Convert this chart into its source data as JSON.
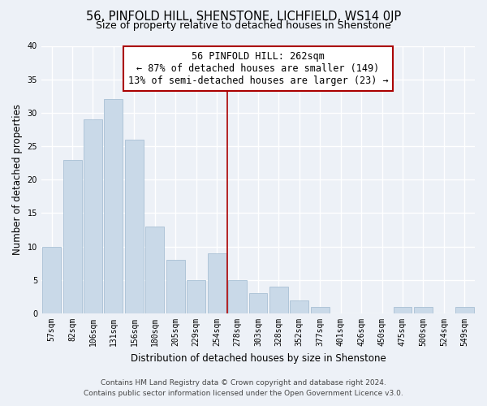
{
  "title": "56, PINFOLD HILL, SHENSTONE, LICHFIELD, WS14 0JP",
  "subtitle": "Size of property relative to detached houses in Shenstone",
  "xlabel": "Distribution of detached houses by size in Shenstone",
  "ylabel": "Number of detached properties",
  "bar_labels": [
    "57sqm",
    "82sqm",
    "106sqm",
    "131sqm",
    "156sqm",
    "180sqm",
    "205sqm",
    "229sqm",
    "254sqm",
    "278sqm",
    "303sqm",
    "328sqm",
    "352sqm",
    "377sqm",
    "401sqm",
    "426sqm",
    "450sqm",
    "475sqm",
    "500sqm",
    "524sqm",
    "549sqm"
  ],
  "bar_values": [
    10,
    23,
    29,
    32,
    26,
    13,
    8,
    5,
    9,
    5,
    3,
    4,
    2,
    1,
    0,
    0,
    0,
    1,
    1,
    0,
    1
  ],
  "bar_color": "#c9d9e8",
  "bar_edge_color": "#a8c0d4",
  "vline_x": 8.5,
  "vline_color": "#aa0000",
  "annotation_title": "56 PINFOLD HILL: 262sqm",
  "annotation_line1": "← 87% of detached houses are smaller (149)",
  "annotation_line2": "13% of semi-detached houses are larger (23) →",
  "annotation_box_facecolor": "#ffffff",
  "annotation_box_edgecolor": "#aa0000",
  "ylim": [
    0,
    40
  ],
  "yticks": [
    0,
    5,
    10,
    15,
    20,
    25,
    30,
    35,
    40
  ],
  "footnote1": "Contains HM Land Registry data © Crown copyright and database right 2024.",
  "footnote2": "Contains public sector information licensed under the Open Government Licence v3.0.",
  "bg_color": "#edf1f7",
  "grid_color": "#ffffff",
  "title_fontsize": 10.5,
  "subtitle_fontsize": 9,
  "axis_label_fontsize": 8.5,
  "tick_fontsize": 7,
  "annotation_fontsize": 8.5,
  "footnote_fontsize": 6.5
}
